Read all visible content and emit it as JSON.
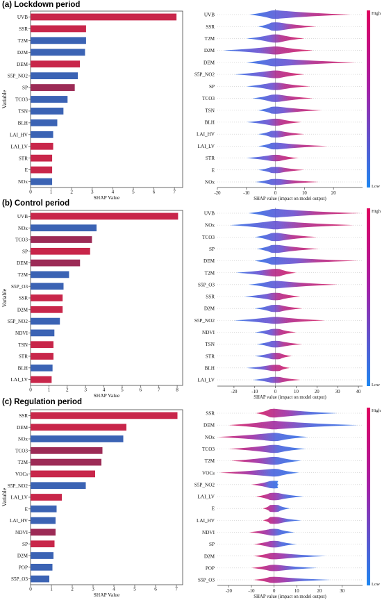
{
  "colors": {
    "red": "#c8264a",
    "blue": "#3b63b4",
    "mid": "#9c2b56",
    "pink": "#e8a8d8",
    "violet": "#7e3fa6",
    "cb_high": "#e0005e",
    "cb_low": "#1e86f0"
  },
  "colorbar": {
    "high": "High",
    "low": "Low"
  },
  "chart_data": [
    {
      "panel_title": "(a) Lockdown period",
      "type": "bar",
      "orientation": "horizontal",
      "xlabel": "SHAP Value",
      "ylabel": "Variable",
      "xlim": [
        0,
        7.4
      ],
      "xticks": [
        0,
        1,
        2,
        3,
        4,
        5,
        6,
        7
      ],
      "categories": [
        "UVB",
        "SSR",
        "T2M",
        "D2M",
        "DEM",
        "S5P_NO2",
        "SP",
        "TCO3",
        "TSN",
        "BLH",
        "LAI_HV",
        "LAI_LV",
        "STR",
        "E",
        "NOx"
      ],
      "values": [
        7.1,
        2.7,
        2.7,
        2.65,
        2.4,
        2.3,
        2.15,
        1.8,
        1.6,
        1.3,
        1.1,
        1.1,
        1.05,
        1.05,
        1.05
      ],
      "bar_colors": [
        "red",
        "red",
        "blue",
        "blue",
        "red",
        "blue",
        "mid",
        "blue",
        "blue",
        "blue",
        "blue",
        "red",
        "red",
        "red",
        "blue"
      ]
    },
    {
      "panel_title": "(a) Lockdown period",
      "type": "beeswarm",
      "xlabel": "SHAP value (impact on model output)",
      "xlim": [
        -20,
        30
      ],
      "xticks": [
        -20,
        -10,
        0,
        10,
        20
      ],
      "categories": [
        "UVB",
        "SSR",
        "T2M",
        "D2M",
        "DEM",
        "S5P_NO2",
        "SP",
        "TCO3",
        "TSN",
        "BLH",
        "LAI_HV",
        "LAI_LV",
        "STR",
        "E",
        "NOx"
      ],
      "ranges": [
        [
          -9,
          26
        ],
        [
          -6,
          14
        ],
        [
          -10,
          10
        ],
        [
          -18,
          13
        ],
        [
          -10,
          28
        ],
        [
          -14,
          10
        ],
        [
          -10,
          12
        ],
        [
          -8,
          13
        ],
        [
          -6,
          16
        ],
        [
          -10,
          9
        ],
        [
          -6,
          10
        ],
        [
          -6,
          18
        ],
        [
          -10,
          8
        ],
        [
          -6,
          10
        ],
        [
          -7,
          15
        ]
      ]
    },
    {
      "panel_title": "(b) Control period",
      "type": "bar",
      "orientation": "horizontal",
      "xlabel": "SHAP Value",
      "ylabel": "Variable",
      "xlim": [
        0,
        8.3
      ],
      "xticks": [
        0,
        1,
        2,
        3,
        4,
        5,
        6,
        7,
        8
      ],
      "categories": [
        "UVB",
        "NOx",
        "TCO3",
        "SP",
        "DEM",
        "T2M",
        "S5P_O3",
        "SSR",
        "D2M",
        "S5P_NO2",
        "NDVI",
        "TSN",
        "STR",
        "BLH",
        "LAI_LV"
      ],
      "values": [
        8.05,
        3.6,
        3.35,
        3.25,
        2.7,
        2.1,
        1.8,
        1.75,
        1.75,
        1.6,
        1.3,
        1.25,
        1.25,
        1.2,
        1.15
      ],
      "bar_colors": [
        "red",
        "blue",
        "mid",
        "red",
        "mid",
        "blue",
        "blue",
        "red",
        "red",
        "blue",
        "blue",
        "red",
        "red",
        "blue",
        "red"
      ]
    },
    {
      "panel_title": "(b) Control period",
      "type": "beeswarm",
      "xlabel": "SHAP value (impact on model output)",
      "xlim": [
        -28,
        42
      ],
      "xticks": [
        -20,
        -10,
        0,
        10,
        20,
        30,
        40
      ],
      "categories": [
        "UVB",
        "NOx",
        "TCO3",
        "SP",
        "DEM",
        "T2M",
        "S5P_O3",
        "SSR",
        "D2M",
        "S5P_NO2",
        "NDVI",
        "TSN",
        "STR",
        "BLH",
        "LAI_LV"
      ],
      "ranges": [
        [
          -13,
          41
        ],
        [
          -22,
          38
        ],
        [
          -10,
          20
        ],
        [
          -9,
          21
        ],
        [
          -10,
          40
        ],
        [
          -19,
          10
        ],
        [
          -13,
          30
        ],
        [
          -15,
          12
        ],
        [
          -10,
          13
        ],
        [
          -20,
          24
        ],
        [
          -10,
          10
        ],
        [
          -9,
          13
        ],
        [
          -10,
          8
        ],
        [
          -14,
          7
        ],
        [
          -11,
          12
        ]
      ]
    },
    {
      "panel_title": "(c) Regulation period",
      "type": "bar",
      "orientation": "horizontal",
      "xlabel": "SHAP Value",
      "ylabel": "Variable",
      "xlim": [
        0,
        7.3
      ],
      "xticks": [
        0,
        1,
        2,
        3,
        4,
        5,
        6,
        7
      ],
      "categories": [
        "SSR",
        "DEM",
        "NOx",
        "TCO3",
        "T2M",
        "VOCs",
        "S5P_NO2",
        "LAI_LV",
        "E",
        "LAI_HV",
        "NDVI",
        "SP",
        "D2M",
        "POP",
        "S5P_O3"
      ],
      "values": [
        7.05,
        4.6,
        4.45,
        3.45,
        3.4,
        3.1,
        2.65,
        1.5,
        1.25,
        1.2,
        1.2,
        1.15,
        1.1,
        1.05,
        0.9
      ],
      "bar_colors": [
        "red",
        "red",
        "blue",
        "mid",
        "mid",
        "red",
        "blue",
        "red",
        "blue",
        "blue",
        "mid",
        "red",
        "blue",
        "blue",
        "blue"
      ]
    },
    {
      "panel_title": "(c) Regulation period",
      "type": "beeswarm",
      "xlabel": "SHAP value (impact on model output)",
      "xlim": [
        -25,
        39
      ],
      "xticks": [
        -20,
        -10,
        0,
        10,
        20,
        30
      ],
      "categories": [
        "SSR",
        "DEM",
        "NOx",
        "TCO3",
        "T2M",
        "VOCs",
        "S5P_NO2",
        "LAI_LV",
        "E",
        "LAI_HV",
        "NDVI",
        "SP",
        "D2M",
        "POP",
        "S5P_O3"
      ],
      "ranges": [
        [
          -8,
          28
        ],
        [
          -20,
          37
        ],
        [
          -25,
          15
        ],
        [
          -20,
          14
        ],
        [
          -19,
          12
        ],
        [
          -24,
          11
        ],
        [
          -10,
          2
        ],
        [
          -8,
          13
        ],
        [
          -5,
          7
        ],
        [
          -5,
          12
        ],
        [
          -11,
          9
        ],
        [
          -9,
          10
        ],
        [
          -9,
          23
        ],
        [
          -10,
          19
        ],
        [
          -9,
          25
        ]
      ]
    }
  ]
}
